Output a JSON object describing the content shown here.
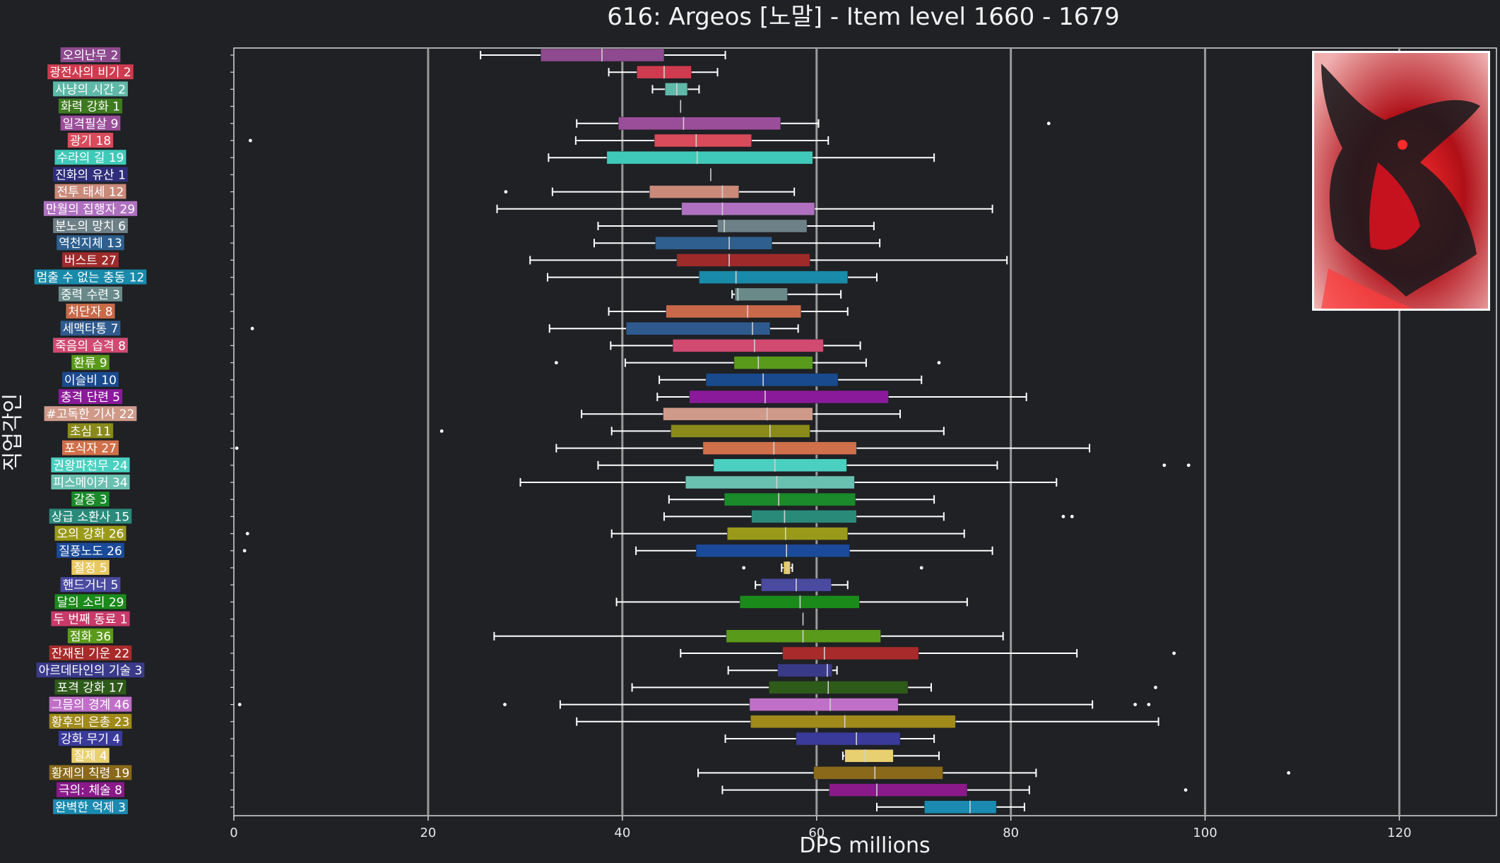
{
  "chart_data": {
    "type": "boxplot",
    "title": "616: Argeos [노말] - Item level 1660 - 1679",
    "xlabel": "DPS millions",
    "ylabel": "직업각인",
    "xlim": [
      0,
      130
    ],
    "xticks": [
      0,
      20,
      40,
      60,
      80,
      100,
      120
    ],
    "grid": "vertical",
    "inset_image": "boss-portrait",
    "series": [
      {
        "name": "오의난무",
        "count": 2,
        "color": "#8e4a8e",
        "whislo": 25.4,
        "q1": 31.6,
        "med": 37.9,
        "q3": 44.3,
        "whishi": 50.6,
        "fliers": []
      },
      {
        "name": "광전사의 비기",
        "count": 2,
        "color": "#cf3b4e",
        "whislo": 38.6,
        "q1": 41.5,
        "med": 44.3,
        "q3": 47.1,
        "whishi": 49.8,
        "fliers": []
      },
      {
        "name": "사냥의 시간",
        "count": 2,
        "color": "#5fb8a8",
        "whislo": 43.1,
        "q1": 44.4,
        "med": 45.6,
        "q3": 46.7,
        "whishi": 47.9,
        "fliers": []
      },
      {
        "name": "화력 강화",
        "count": 1,
        "color": "#3e7a1f",
        "whislo": 46.0,
        "q1": 46.0,
        "med": 46.0,
        "q3": 46.0,
        "whishi": 46.0,
        "fliers": []
      },
      {
        "name": "일격필살",
        "count": 9,
        "color": "#9a4e9a",
        "whislo": 35.3,
        "q1": 39.6,
        "med": 46.3,
        "q3": 56.3,
        "whishi": 60.2,
        "fliers": [
          83.9
        ]
      },
      {
        "name": "광기",
        "count": 18,
        "color": "#d94a5a",
        "whislo": 35.2,
        "q1": 43.3,
        "med": 47.6,
        "q3": 53.3,
        "whishi": 61.2,
        "fliers": [
          1.7
        ]
      },
      {
        "name": "수라의 길",
        "count": 19,
        "color": "#3fc9b8",
        "whislo": 32.4,
        "q1": 38.4,
        "med": 47.7,
        "q3": 59.6,
        "whishi": 72.1,
        "fliers": []
      },
      {
        "name": "진화의 유산",
        "count": 1,
        "color": "#2e2e7a",
        "whislo": 49.1,
        "q1": 49.1,
        "med": 49.1,
        "q3": 49.1,
        "whishi": 49.1,
        "fliers": []
      },
      {
        "name": "전투 태세",
        "count": 12,
        "color": "#c98a7a",
        "whislo": 32.8,
        "q1": 42.8,
        "med": 50.3,
        "q3": 52.0,
        "whishi": 57.7,
        "fliers": [
          28.0
        ]
      },
      {
        "name": "만월의 집행자",
        "count": 29,
        "color": "#b070c0",
        "whislo": 27.1,
        "q1": 46.1,
        "med": 50.3,
        "q3": 59.8,
        "whishi": 78.1,
        "fliers": []
      },
      {
        "name": "분노의 망치",
        "count": 6,
        "color": "#6e8087",
        "whislo": 37.5,
        "q1": 49.8,
        "med": 50.5,
        "q3": 59.0,
        "whishi": 65.9,
        "fliers": []
      },
      {
        "name": "역천지체",
        "count": 13,
        "color": "#2e5f8e",
        "whislo": 37.1,
        "q1": 43.4,
        "med": 51.0,
        "q3": 55.4,
        "whishi": 66.5,
        "fliers": []
      },
      {
        "name": "버스트",
        "count": 27,
        "color": "#9e2a2a",
        "whislo": 30.5,
        "q1": 45.6,
        "med": 51.0,
        "q3": 59.3,
        "whishi": 79.6,
        "fliers": []
      },
      {
        "name": "멈출 수 없는 충동",
        "count": 12,
        "color": "#1a8aaa",
        "whislo": 32.3,
        "q1": 47.9,
        "med": 51.7,
        "q3": 63.2,
        "whishi": 66.2,
        "fliers": []
      },
      {
        "name": "중력 수련",
        "count": 3,
        "color": "#6a8a8a",
        "whislo": 51.3,
        "q1": 51.6,
        "med": 51.9,
        "q3": 57.0,
        "whishi": 62.5,
        "fliers": []
      },
      {
        "name": "처단자",
        "count": 8,
        "color": "#c86a4a",
        "whislo": 38.6,
        "q1": 44.5,
        "med": 52.9,
        "q3": 58.4,
        "whishi": 63.2,
        "fliers": []
      },
      {
        "name": "세맥타통",
        "count": 7,
        "color": "#2e5a8e",
        "whislo": 32.5,
        "q1": 40.4,
        "med": 53.4,
        "q3": 55.2,
        "whishi": 58.1,
        "fliers": [
          1.9
        ]
      },
      {
        "name": "죽음의 습격",
        "count": 8,
        "color": "#d04a72",
        "whislo": 38.8,
        "q1": 45.2,
        "med": 53.6,
        "q3": 60.7,
        "whishi": 64.5,
        "fliers": []
      },
      {
        "name": "환류",
        "count": 9,
        "color": "#5a9a1a",
        "whislo": 40.3,
        "q1": 51.5,
        "med": 54.0,
        "q3": 59.6,
        "whishi": 65.1,
        "fliers": [
          33.2,
          72.6
        ]
      },
      {
        "name": "이슬비",
        "count": 10,
        "color": "#1a4a8e",
        "whislo": 43.8,
        "q1": 48.6,
        "med": 54.5,
        "q3": 62.2,
        "whishi": 70.8,
        "fliers": []
      },
      {
        "name": "충격 단련",
        "count": 5,
        "color": "#8a1a9a",
        "whislo": 43.6,
        "q1": 46.9,
        "med": 54.7,
        "q3": 67.4,
        "whishi": 81.6,
        "fliers": []
      },
      {
        "name": "#고독한 기사",
        "count": 22,
        "color": "#d09a8a",
        "whislo": 35.8,
        "q1": 44.2,
        "med": 54.9,
        "q3": 59.6,
        "whishi": 68.6,
        "fliers": []
      },
      {
        "name": "초심",
        "count": 11,
        "color": "#8a8a1a",
        "whislo": 38.9,
        "q1": 45.0,
        "med": 55.2,
        "q3": 59.3,
        "whishi": 73.1,
        "fliers": [
          21.4
        ]
      },
      {
        "name": "포식자",
        "count": 27,
        "color": "#d0704a",
        "whislo": 33.2,
        "q1": 48.3,
        "med": 55.6,
        "q3": 64.1,
        "whishi": 88.1,
        "fliers": [
          0.3
        ]
      },
      {
        "name": "권왕파천무",
        "count": 24,
        "color": "#4ad0c0",
        "whislo": 37.5,
        "q1": 49.4,
        "med": 55.7,
        "q3": 63.1,
        "whishi": 78.6,
        "fliers": [
          95.8,
          98.3
        ]
      },
      {
        "name": "피스메이커",
        "count": 34,
        "color": "#6ac0b0",
        "whislo": 29.5,
        "q1": 46.5,
        "med": 55.9,
        "q3": 63.9,
        "whishi": 84.7,
        "fliers": []
      },
      {
        "name": "갈증",
        "count": 3,
        "color": "#1a8a2a",
        "whislo": 44.8,
        "q1": 50.5,
        "med": 56.1,
        "q3": 64.0,
        "whishi": 72.1,
        "fliers": []
      },
      {
        "name": "상급 소환사",
        "count": 15,
        "color": "#2a8a7a",
        "whislo": 44.3,
        "q1": 53.3,
        "med": 56.7,
        "q3": 64.1,
        "whishi": 73.1,
        "fliers": [
          85.4,
          86.3
        ]
      },
      {
        "name": "오의 강화",
        "count": 26,
        "color": "#9a9a1a",
        "whislo": 38.9,
        "q1": 50.8,
        "med": 56.8,
        "q3": 63.2,
        "whishi": 75.2,
        "fliers": [
          1.4
        ]
      },
      {
        "name": "질풍노도",
        "count": 26,
        "color": "#1a4a9a",
        "whislo": 41.4,
        "q1": 47.6,
        "med": 56.9,
        "q3": 63.4,
        "whishi": 78.1,
        "fliers": [
          1.1
        ]
      },
      {
        "name": "절정",
        "count": 5,
        "color": "#e8c860",
        "whislo": 56.4,
        "q1": 56.6,
        "med": 57.0,
        "q3": 57.3,
        "whishi": 57.5,
        "fliers": [
          52.5,
          70.8
        ]
      },
      {
        "name": "핸드거너",
        "count": 5,
        "color": "#4a4aa0",
        "whislo": 53.7,
        "q1": 54.3,
        "med": 57.9,
        "q3": 61.5,
        "whishi": 63.2,
        "fliers": []
      },
      {
        "name": "달의 소리",
        "count": 29,
        "color": "#1a8a1a",
        "whislo": 39.4,
        "q1": 52.1,
        "med": 58.3,
        "q3": 64.4,
        "whishi": 75.5,
        "fliers": []
      },
      {
        "name": "두 번째 동료",
        "count": 1,
        "color": "#c83a6a",
        "whislo": 58.6,
        "q1": 58.6,
        "med": 58.6,
        "q3": 58.6,
        "whishi": 58.6,
        "fliers": []
      },
      {
        "name": "점화",
        "count": 36,
        "color": "#5a9a1a",
        "whislo": 26.8,
        "q1": 50.7,
        "med": 58.6,
        "q3": 66.6,
        "whishi": 79.2,
        "fliers": []
      },
      {
        "name": "잔재된 기운",
        "count": 22,
        "color": "#a82a2a",
        "whislo": 46.0,
        "q1": 56.5,
        "med": 60.8,
        "q3": 70.5,
        "whishi": 86.8,
        "fliers": [
          96.8
        ]
      },
      {
        "name": "아르데타인의 기술",
        "count": 3,
        "color": "#3a3a8a",
        "whislo": 50.9,
        "q1": 56.0,
        "med": 61.1,
        "q3": 61.6,
        "whishi": 62.1,
        "fliers": []
      },
      {
        "name": "포격 강화",
        "count": 17,
        "color": "#2e5a1a",
        "whislo": 41.0,
        "q1": 55.1,
        "med": 61.2,
        "q3": 69.4,
        "whishi": 71.8,
        "fliers": [
          94.9
        ]
      },
      {
        "name": "그믐의 경계",
        "count": 46,
        "color": "#c070c8",
        "whislo": 33.6,
        "q1": 53.1,
        "med": 61.4,
        "q3": 68.4,
        "whishi": 88.4,
        "fliers": [
          0.6,
          27.9,
          92.8,
          94.2
        ]
      },
      {
        "name": "황후의 은총",
        "count": 23,
        "color": "#a08a1a",
        "whislo": 35.3,
        "q1": 53.2,
        "med": 62.9,
        "q3": 74.3,
        "whishi": 95.2,
        "fliers": []
      },
      {
        "name": "강화 무기",
        "count": 4,
        "color": "#3a3a9a",
        "whislo": 50.6,
        "q1": 57.9,
        "med": 64.1,
        "q3": 68.6,
        "whishi": 72.1,
        "fliers": []
      },
      {
        "name": "질제",
        "count": 4,
        "color": "#e8d070",
        "whislo": 62.7,
        "q1": 62.9,
        "med": 65.0,
        "q3": 67.9,
        "whishi": 72.6,
        "fliers": []
      },
      {
        "name": "황제의 칙령",
        "count": 19,
        "color": "#8a6a1a",
        "whislo": 47.8,
        "q1": 59.7,
        "med": 66.0,
        "q3": 73.0,
        "whishi": 82.6,
        "fliers": [
          108.6
        ]
      },
      {
        "name": "극의: 체술",
        "count": 8,
        "color": "#8a1a8a",
        "whislo": 50.3,
        "q1": 61.3,
        "med": 66.2,
        "q3": 75.5,
        "whishi": 81.9,
        "fliers": [
          98.0
        ]
      },
      {
        "name": "완벽한 억제",
        "count": 3,
        "color": "#1a8ab0",
        "whislo": 66.2,
        "q1": 71.1,
        "med": 75.8,
        "q3": 78.5,
        "whishi": 81.4,
        "fliers": []
      }
    ]
  }
}
